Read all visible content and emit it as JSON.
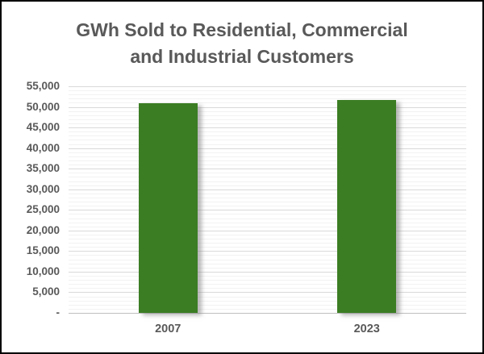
{
  "chart_data": {
    "type": "bar",
    "title": "GWh Sold to Residential, Commercial and Industrial Customers",
    "title_lines": [
      "GWh Sold to Residential, Commercial",
      "and Industrial Customers"
    ],
    "categories": [
      "2007",
      "2023"
    ],
    "values": [
      50800,
      51600
    ],
    "xlabel": "",
    "ylabel": "",
    "ylim": [
      0,
      55000
    ],
    "y_major_unit": 5000,
    "y_minor_unit": 1000,
    "y_tick_labels": [
      "55,000",
      "50,000",
      "45,000",
      "40,000",
      "35,000",
      "30,000",
      "25,000",
      "20,000",
      "15,000",
      "10,000",
      "5,000",
      "-"
    ],
    "grid": true,
    "legend": "none",
    "colors": {
      "bar": "#3B7D23",
      "major_gridline": "#D9D9D9",
      "minor_gridline": "#F2F2F2",
      "axis_line": "#BFBFBF",
      "text": "#595959",
      "background": "#FFFFFF",
      "frame_border": "#000000"
    }
  }
}
